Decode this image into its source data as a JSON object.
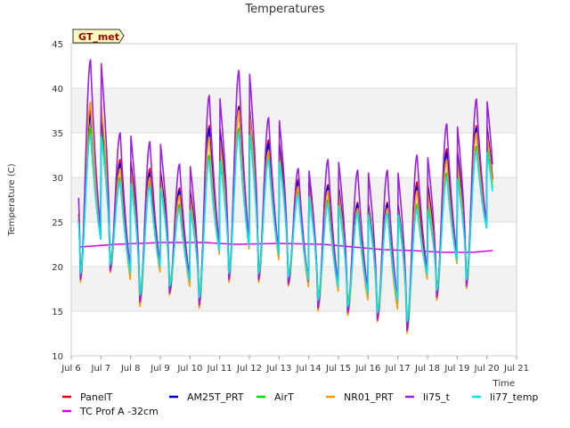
{
  "chart_data": {
    "type": "line",
    "title": "Temperatures",
    "xlabel": "Time",
    "ylabel": "Temperature (C)",
    "badge": "GT_met",
    "xlim": [
      6,
      21
    ],
    "ylim": [
      10,
      45
    ],
    "x_ticks": [
      {
        "v": 6,
        "label": "Jul 6"
      },
      {
        "v": 7,
        "label": "Jul 7"
      },
      {
        "v": 8,
        "label": "Jul 8"
      },
      {
        "v": 9,
        "label": "Jul 9"
      },
      {
        "v": 10,
        "label": "Jul 10"
      },
      {
        "v": 11,
        "label": "Jul 11"
      },
      {
        "v": 12,
        "label": "Jul 12"
      },
      {
        "v": 13,
        "label": "Jul 13"
      },
      {
        "v": 14,
        "label": "Jul 14"
      },
      {
        "v": 15,
        "label": "Jul 15"
      },
      {
        "v": 16,
        "label": "Jul 16"
      },
      {
        "v": 17,
        "label": "Jul 17"
      },
      {
        "v": 18,
        "label": "Jul 18"
      },
      {
        "v": 19,
        "label": "Jul 19"
      },
      {
        "v": 20,
        "label": "Jul 20"
      },
      {
        "v": 21,
        "label": "Jul 21"
      }
    ],
    "y_ticks": [
      10,
      15,
      20,
      25,
      30,
      35,
      40,
      45
    ],
    "grid": true,
    "legend_position": "bottom",
    "daily": {
      "days": [
        6,
        7,
        8,
        9,
        10,
        11,
        12,
        13,
        14,
        15,
        16,
        17,
        18,
        19,
        20
      ],
      "min_at_day_plus": 0.3,
      "max_at_day_plus": 0.65,
      "x_start": 6.25,
      "x_end": 20.2
    },
    "series": [
      {
        "name": "PanelT",
        "color": "#e8000b",
        "mins": [
          19.0,
          20.0,
          16.5,
          17.5,
          16.0,
          19.0,
          19.0,
          18.5,
          15.8,
          15.2,
          14.5,
          13.2,
          17.0,
          18.2,
          22.0
        ],
        "maxs": [
          37.5,
          32.0,
          31.0,
          28.8,
          35.8,
          38.0,
          34.2,
          29.8,
          29.2,
          27.2,
          27.2,
          29.5,
          33.2,
          35.8,
          24.0
        ]
      },
      {
        "name": "TC Prof A -32cm",
        "color": "#e100e1",
        "points": [
          [
            6.3,
            22.2
          ],
          [
            7.5,
            22.5
          ],
          [
            9,
            22.7
          ],
          [
            10.5,
            22.7
          ],
          [
            11.5,
            22.5
          ],
          [
            13,
            22.6
          ],
          [
            14.5,
            22.5
          ],
          [
            15.5,
            22.2
          ],
          [
            16.5,
            21.9
          ],
          [
            17.5,
            21.8
          ],
          [
            18.5,
            21.6
          ],
          [
            19.5,
            21.6
          ],
          [
            20.2,
            21.8
          ]
        ]
      },
      {
        "name": "AM25T_PRT",
        "color": "#0000c8",
        "mins": [
          18.8,
          19.8,
          16.2,
          17.2,
          15.8,
          18.8,
          18.8,
          18.2,
          15.6,
          15.0,
          14.2,
          13.0,
          16.8,
          18.0,
          22.0
        ],
        "maxs": [
          37.0,
          31.5,
          30.5,
          28.5,
          35.5,
          37.8,
          33.8,
          29.5,
          29.0,
          27.0,
          27.0,
          29.0,
          32.8,
          35.5,
          24.0
        ]
      },
      {
        "name": "AirT",
        "color": "#00e000",
        "mins": [
          19.5,
          20.5,
          17.0,
          18.0,
          16.8,
          19.5,
          19.5,
          19.0,
          16.5,
          15.8,
          15.0,
          14.0,
          17.5,
          18.8,
          22.5
        ],
        "maxs": [
          35.5,
          30.0,
          29.5,
          27.0,
          32.5,
          35.5,
          32.5,
          28.5,
          27.5,
          26.5,
          26.5,
          27.0,
          30.5,
          33.5,
          24.5
        ]
      },
      {
        "name": "NR01_PRT",
        "color": "#ff9900",
        "mins": [
          18.2,
          19.3,
          15.5,
          16.8,
          15.3,
          18.2,
          18.2,
          17.8,
          15.0,
          14.5,
          13.8,
          12.5,
          16.2,
          17.5,
          21.8
        ],
        "maxs": [
          38.5,
          31.0,
          30.0,
          28.0,
          34.5,
          37.5,
          33.0,
          29.0,
          28.5,
          26.5,
          26.5,
          28.5,
          32.0,
          35.0,
          24.0
        ]
      },
      {
        "name": "li75_t",
        "color": "#9b20e6",
        "mins": [
          18.5,
          19.5,
          16.0,
          17.0,
          15.6,
          18.5,
          18.5,
          18.0,
          15.3,
          14.8,
          14.0,
          12.8,
          16.5,
          17.8,
          21.5
        ],
        "maxs": [
          43.2,
          35.0,
          34.0,
          31.5,
          39.2,
          42.0,
          36.7,
          31.0,
          32.0,
          30.8,
          30.8,
          32.5,
          36.0,
          38.8,
          25.0
        ]
      },
      {
        "name": "li77_temp",
        "color": "#00e5ee",
        "mins": [
          19.2,
          20.2,
          16.8,
          17.8,
          16.5,
          19.2,
          19.2,
          18.8,
          16.2,
          15.5,
          14.8,
          13.8,
          17.3,
          18.5,
          22.2
        ],
        "maxs": [
          34.8,
          29.5,
          29.0,
          26.5,
          32.0,
          35.0,
          32.0,
          28.0,
          27.0,
          26.0,
          26.0,
          26.5,
          30.0,
          33.0,
          24.5
        ]
      }
    ]
  }
}
